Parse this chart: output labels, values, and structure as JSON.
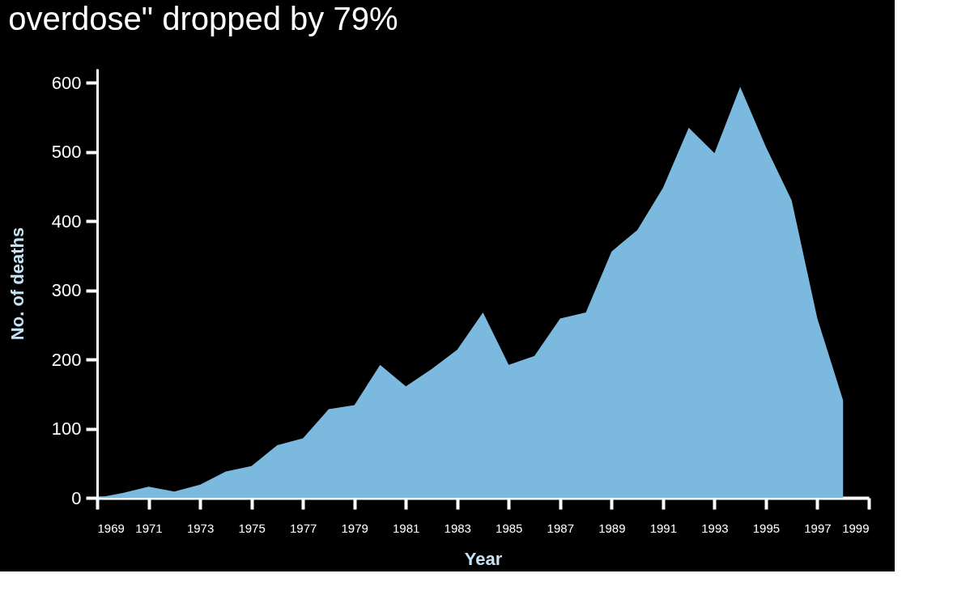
{
  "chart_data": {
    "type": "area",
    "title": "overdose\" dropped by 79%",
    "xlabel": "Year",
    "ylabel": "No. of deaths",
    "x": [
      1969,
      1970,
      1971,
      1972,
      1973,
      1974,
      1975,
      1976,
      1977,
      1978,
      1979,
      1980,
      1981,
      1982,
      1983,
      1984,
      1985,
      1986,
      1987,
      1988,
      1989,
      1990,
      1991,
      1992,
      1993,
      1994,
      1995,
      1996,
      1997,
      1998
    ],
    "series": [
      {
        "color": "#7cb9df",
        "values": [
          0,
          7,
          16,
          9,
          19,
          38,
          46,
          76,
          86,
          128,
          134,
          192,
          161,
          186,
          214,
          268,
          192,
          205,
          259,
          268,
          356,
          387,
          448,
          535,
          498,
          594,
          507,
          430,
          259,
          141
        ]
      }
    ],
    "xlim": [
      1969,
      1999
    ],
    "xticks": [
      1969,
      1971,
      1973,
      1975,
      1977,
      1979,
      1981,
      1983,
      1985,
      1987,
      1989,
      1991,
      1993,
      1995,
      1997,
      1999
    ],
    "ylim": [
      0,
      620
    ],
    "yticks": [
      0,
      100,
      200,
      300,
      400,
      500,
      600
    ],
    "grid": false
  }
}
